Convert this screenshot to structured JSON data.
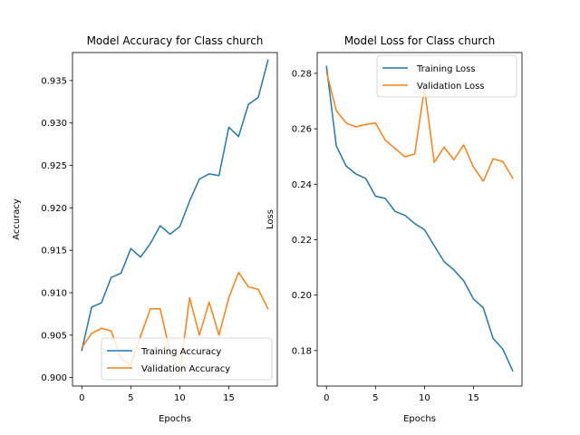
{
  "chart_data": [
    {
      "type": "line",
      "title": "Model Accuracy for Class church",
      "xlabel": "Epochs",
      "ylabel": "Accuracy",
      "xlim": [
        -0.95,
        19.95
      ],
      "ylim": [
        0.899,
        0.9383
      ],
      "xticks": [
        0,
        5,
        10,
        15
      ],
      "yticks": [
        0.9,
        0.905,
        0.91,
        0.915,
        0.92,
        0.925,
        0.93,
        0.935
      ],
      "grid": false,
      "legend_loc": "lower right",
      "x": [
        0,
        1,
        2,
        3,
        4,
        5,
        6,
        7,
        8,
        9,
        10,
        11,
        12,
        13,
        14,
        15,
        16,
        17,
        18,
        19
      ],
      "series": [
        {
          "name": "Training Accuracy",
          "color": "#1f77b4",
          "values": [
            0.9032,
            0.9083,
            0.9088,
            0.9118,
            0.9123,
            0.9152,
            0.9142,
            0.9158,
            0.9179,
            0.9169,
            0.9178,
            0.9208,
            0.9234,
            0.924,
            0.9238,
            0.9295,
            0.9284,
            0.9322,
            0.933,
            0.9374
          ]
        },
        {
          "name": "Validation Accuracy",
          "color": "#ff7f0e",
          "values": [
            0.9035,
            0.9052,
            0.9058,
            0.9055,
            0.9022,
            0.9015,
            0.9049,
            0.9081,
            0.9081,
            0.903,
            0.9005,
            0.9094,
            0.905,
            0.9089,
            0.905,
            0.9094,
            0.9124,
            0.9107,
            0.9104,
            0.9081
          ]
        }
      ]
    },
    {
      "type": "line",
      "title": "Model Loss for Class church",
      "xlabel": "Epochs",
      "ylabel": "Loss",
      "xlim": [
        -0.95,
        19.95
      ],
      "ylim": [
        0.1672,
        0.2875
      ],
      "xticks": [
        0,
        5,
        10,
        15
      ],
      "yticks": [
        0.18,
        0.2,
        0.22,
        0.24,
        0.26,
        0.28
      ],
      "grid": false,
      "legend_loc": "upper right",
      "x": [
        0,
        1,
        2,
        3,
        4,
        5,
        6,
        7,
        8,
        9,
        10,
        11,
        12,
        13,
        14,
        15,
        16,
        17,
        18,
        19
      ],
      "series": [
        {
          "name": "Training Loss",
          "color": "#1f77b4",
          "values": [
            0.2825,
            0.2538,
            0.2466,
            0.2437,
            0.2421,
            0.2357,
            0.2349,
            0.2302,
            0.2288,
            0.2258,
            0.2236,
            0.2178,
            0.2121,
            0.2091,
            0.2052,
            0.1986,
            0.1954,
            0.1844,
            0.1805,
            0.1727
          ]
        },
        {
          "name": "Validation Loss",
          "color": "#ff7f0e",
          "values": [
            0.2805,
            0.2665,
            0.2621,
            0.2607,
            0.2616,
            0.2621,
            0.2559,
            0.2529,
            0.2499,
            0.2509,
            0.2746,
            0.2479,
            0.2534,
            0.2488,
            0.2542,
            0.2462,
            0.2411,
            0.2492,
            0.2482,
            0.2422
          ]
        }
      ]
    }
  ]
}
